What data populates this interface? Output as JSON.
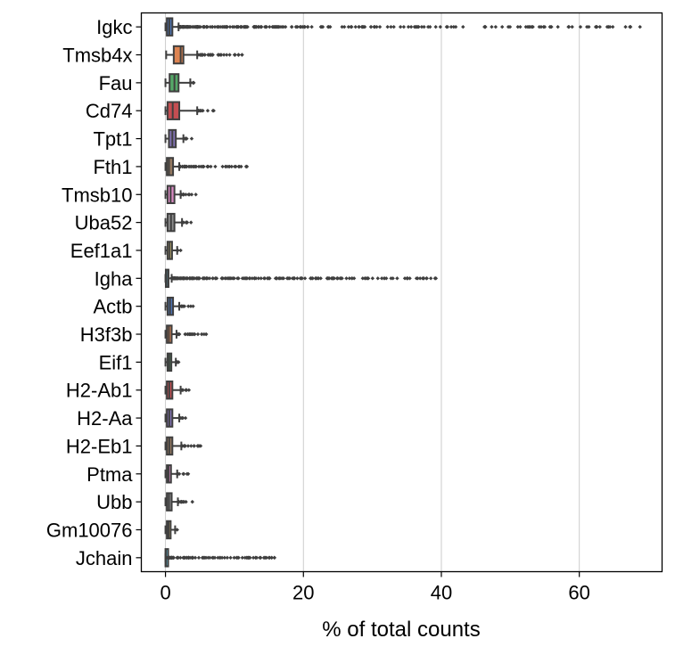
{
  "chart_data": {
    "type": "box",
    "orientation": "horizontal",
    "title": "",
    "xlabel": "% of total counts",
    "ylabel": "",
    "xlim": [
      -3.5,
      72
    ],
    "xticks": [
      0,
      20,
      40,
      60
    ],
    "grid": "vertical",
    "categories": [
      "Igkc",
      "Tmsb4x",
      "Fau",
      "Cd74",
      "Tpt1",
      "Fth1",
      "Tmsb10",
      "Uba52",
      "Eef1a1",
      "Igha",
      "Actb",
      "H3f3b",
      "Eif1",
      "H2-Ab1",
      "H2-Aa",
      "H2-Eb1",
      "Ptma",
      "Ubb",
      "Gm10076",
      "Jchain"
    ],
    "colors": [
      "#4c72b0",
      "#dd8452",
      "#55a868",
      "#c44e52",
      "#8172b3",
      "#937860",
      "#da8bc3",
      "#8c8c8c",
      "#ccb974",
      "#64b5cd",
      "#4c72b0",
      "#dd8452",
      "#55a868",
      "#c44e52",
      "#8172b3",
      "#937860",
      "#da8bc3",
      "#8c8c8c",
      "#ccb974",
      "#64b5cd"
    ],
    "boxes": [
      {
        "q1": 0.2,
        "median": 0.55,
        "q3": 1.0,
        "whisker_low": 0.0,
        "whisker_high": 1.9,
        "outlier_max": 68.8
      },
      {
        "q1": 1.2,
        "median": 2.2,
        "q3": 2.6,
        "whisker_low": 0.1,
        "whisker_high": 4.6,
        "outlier_max": 11.1
      },
      {
        "q1": 0.6,
        "median": 1.3,
        "q3": 1.9,
        "whisker_low": 0.0,
        "whisker_high": 3.6,
        "outlier_max": 4.1
      },
      {
        "q1": 0.3,
        "median": 1.05,
        "q3": 2.0,
        "whisker_low": 0.0,
        "whisker_high": 4.6,
        "outlier_max": 7.0
      },
      {
        "q1": 0.5,
        "median": 1.0,
        "q3": 1.5,
        "whisker_low": 0.0,
        "whisker_high": 2.6,
        "outlier_max": 3.8
      },
      {
        "q1": 0.2,
        "median": 0.5,
        "q3": 1.1,
        "whisker_low": 0.0,
        "whisker_high": 2.0,
        "outlier_max": 11.8
      },
      {
        "q1": 0.3,
        "median": 0.75,
        "q3": 1.3,
        "whisker_low": 0.0,
        "whisker_high": 2.2,
        "outlier_max": 4.4
      },
      {
        "q1": 0.3,
        "median": 0.8,
        "q3": 1.3,
        "whisker_low": 0.0,
        "whisker_high": 2.4,
        "outlier_max": 3.7
      },
      {
        "q1": 0.3,
        "median": 0.6,
        "q3": 0.95,
        "whisker_low": 0.0,
        "whisker_high": 1.7,
        "outlier_max": 2.2
      },
      {
        "q1": 0.05,
        "median": 0.15,
        "q3": 0.4,
        "whisker_low": 0.0,
        "whisker_high": 0.9,
        "outlier_max": 39.2
      },
      {
        "q1": 0.3,
        "median": 0.65,
        "q3": 1.1,
        "whisker_low": 0.0,
        "whisker_high": 2.0,
        "outlier_max": 4.0
      },
      {
        "q1": 0.2,
        "median": 0.5,
        "q3": 0.9,
        "whisker_low": 0.0,
        "whisker_high": 1.6,
        "outlier_max": 5.9
      },
      {
        "q1": 0.3,
        "median": 0.55,
        "q3": 0.85,
        "whisker_low": 0.0,
        "whisker_high": 1.5,
        "outlier_max": 1.9
      },
      {
        "q1": 0.2,
        "median": 0.55,
        "q3": 1.0,
        "whisker_low": 0.0,
        "whisker_high": 2.2,
        "outlier_max": 3.4
      },
      {
        "q1": 0.2,
        "median": 0.55,
        "q3": 1.0,
        "whisker_low": 0.0,
        "whisker_high": 2.0,
        "outlier_max": 2.9
      },
      {
        "q1": 0.2,
        "median": 0.55,
        "q3": 1.0,
        "whisker_low": 0.0,
        "whisker_high": 2.3,
        "outlier_max": 5.1
      },
      {
        "q1": 0.2,
        "median": 0.45,
        "q3": 0.8,
        "whisker_low": 0.0,
        "whisker_high": 1.7,
        "outlier_max": 3.3
      },
      {
        "q1": 0.2,
        "median": 0.5,
        "q3": 0.9,
        "whisker_low": 0.0,
        "whisker_high": 1.8,
        "outlier_max": 3.9
      },
      {
        "q1": 0.2,
        "median": 0.45,
        "q3": 0.75,
        "whisker_low": 0.0,
        "whisker_high": 1.4,
        "outlier_max": 1.7
      },
      {
        "q1": 0.0,
        "median": 0.05,
        "q3": 0.15,
        "whisker_low": 0.0,
        "whisker_high": 0.3,
        "outlier_max": 15.8
      }
    ],
    "outlier_extras": [
      {
        "category": "Igha",
        "values": [
          21.8,
          24.3,
          24.9,
          25.6,
          28.6,
          39.2
        ]
      },
      {
        "category": "Jchain",
        "values": [
          14.3,
          15.0,
          15.8
        ]
      },
      {
        "category": "Fth1",
        "values": [
          9.1,
          10.2,
          11.8
        ]
      },
      {
        "category": "H3f3b",
        "values": [
          4.2,
          5.9
        ]
      },
      {
        "category": "Tmsb4x",
        "values": [
          10.1,
          10.6,
          11.1
        ]
      }
    ]
  }
}
